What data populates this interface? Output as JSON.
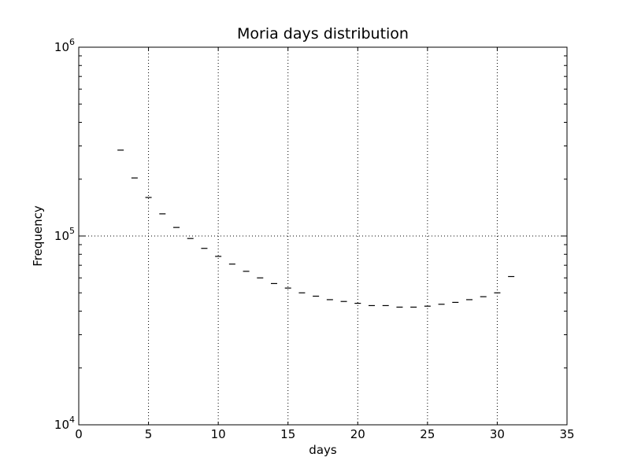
{
  "chart_data": {
    "type": "scatter",
    "title": "Moria days distribution",
    "xlabel": "days",
    "ylabel": "Frequency",
    "xlim": [
      0,
      35
    ],
    "ylim": [
      10000,
      1000000
    ],
    "yscale": "log",
    "grid": true,
    "marker": "_",
    "x_ticks": [
      "0",
      "5",
      "10",
      "15",
      "20",
      "25",
      "30",
      "35"
    ],
    "y_ticks": [
      {
        "base": "10",
        "exp": "4"
      },
      {
        "base": "10",
        "exp": "5"
      },
      {
        "base": "10",
        "exp": "6"
      }
    ],
    "x": [
      3,
      4,
      5,
      6,
      7,
      8,
      9,
      10,
      11,
      12,
      13,
      14,
      15,
      16,
      17,
      18,
      19,
      20,
      21,
      22,
      23,
      24,
      25,
      26,
      27,
      28,
      29,
      30,
      31
    ],
    "y": [
      285000,
      203000,
      160000,
      131000,
      111000,
      97000,
      86000,
      78000,
      71000,
      65000,
      60000,
      56000,
      53000,
      50000,
      48000,
      46000,
      45000,
      44000,
      42800,
      42800,
      42000,
      42000,
      42500,
      43500,
      44500,
      46000,
      47700,
      50000,
      61000
    ]
  }
}
